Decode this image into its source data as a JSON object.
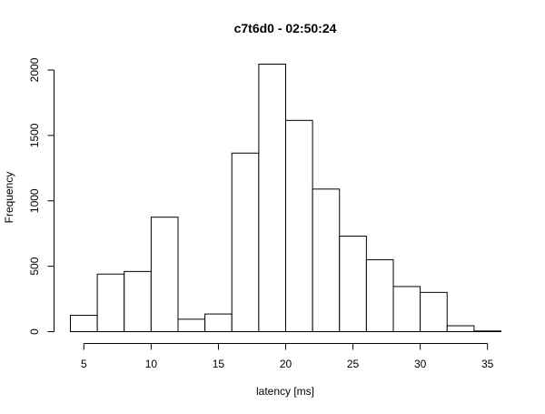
{
  "chart_data": {
    "type": "bar",
    "title": "c7t6d0 - 02:50:24",
    "xlabel": "latency [ms]",
    "ylabel": "Frequency",
    "bins": [
      {
        "start": 4,
        "end": 6,
        "value": 125
      },
      {
        "start": 6,
        "end": 8,
        "value": 440
      },
      {
        "start": 8,
        "end": 10,
        "value": 460
      },
      {
        "start": 10,
        "end": 12,
        "value": 875
      },
      {
        "start": 12,
        "end": 14,
        "value": 95
      },
      {
        "start": 14,
        "end": 16,
        "value": 135
      },
      {
        "start": 16,
        "end": 18,
        "value": 1365
      },
      {
        "start": 18,
        "end": 20,
        "value": 2045
      },
      {
        "start": 20,
        "end": 22,
        "value": 1615
      },
      {
        "start": 22,
        "end": 24,
        "value": 1090
      },
      {
        "start": 24,
        "end": 26,
        "value": 730
      },
      {
        "start": 26,
        "end": 28,
        "value": 550
      },
      {
        "start": 28,
        "end": 30,
        "value": 345
      },
      {
        "start": 30,
        "end": 32,
        "value": 300
      },
      {
        "start": 32,
        "end": 34,
        "value": 45
      },
      {
        "start": 34,
        "end": 36,
        "value": 5
      }
    ],
    "xticks": [
      5,
      10,
      15,
      20,
      25,
      30,
      35
    ],
    "yticks": [
      0,
      500,
      1000,
      1500,
      2000
    ],
    "xlim": [
      4,
      36
    ],
    "ylim": [
      0,
      2045
    ],
    "grid": false,
    "legend": "none"
  }
}
